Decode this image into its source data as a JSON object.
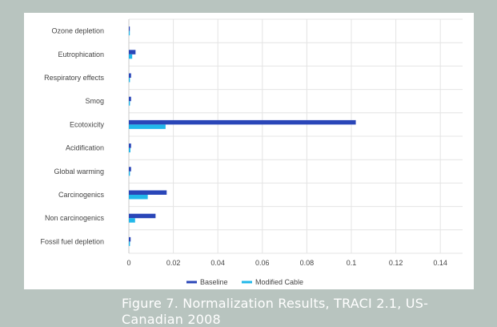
{
  "caption": "Figure 7. Normalization Results, TRACI 2.1, US-Canadian 2008",
  "colors": {
    "background": "#b8c4bf",
    "baseline": "#2a46b8",
    "modified": "#22b8ea",
    "grid": "#e4e4e4",
    "text": "#444444"
  },
  "chart_data": {
    "type": "bar",
    "orientation": "horizontal",
    "title": "",
    "xlabel": "",
    "ylabel": "",
    "categories": [
      "Ozone depletion",
      "Eutrophication",
      "Respiratory effects",
      "Smog",
      "Ecotoxicity",
      "Acidification",
      "Global warming",
      "Carcinogenics",
      "Non carcinogenics",
      "Fossil fuel depletion"
    ],
    "series": [
      {
        "name": "Baseline",
        "color": "#2a46b8",
        "values": [
          0.0002,
          0.003,
          0.001,
          0.001,
          0.102,
          0.001,
          0.001,
          0.017,
          0.012,
          0.0008
        ]
      },
      {
        "name": "Modified Cable",
        "color": "#22b8ea",
        "values": [
          0.0001,
          0.0015,
          0.0005,
          0.0005,
          0.0165,
          0.0007,
          0.0005,
          0.0085,
          0.0028,
          0.0005
        ]
      }
    ],
    "xlim": [
      0,
      0.15
    ],
    "xticks": [
      "0",
      "0.02",
      "0.04",
      "0.06",
      "0.08",
      "0.1",
      "0.12",
      "0.14"
    ],
    "xtick_values": [
      0,
      0.02,
      0.04,
      0.06,
      0.08,
      0.1,
      0.12,
      0.14
    ],
    "grid": true,
    "legend_position": "bottom-center"
  }
}
